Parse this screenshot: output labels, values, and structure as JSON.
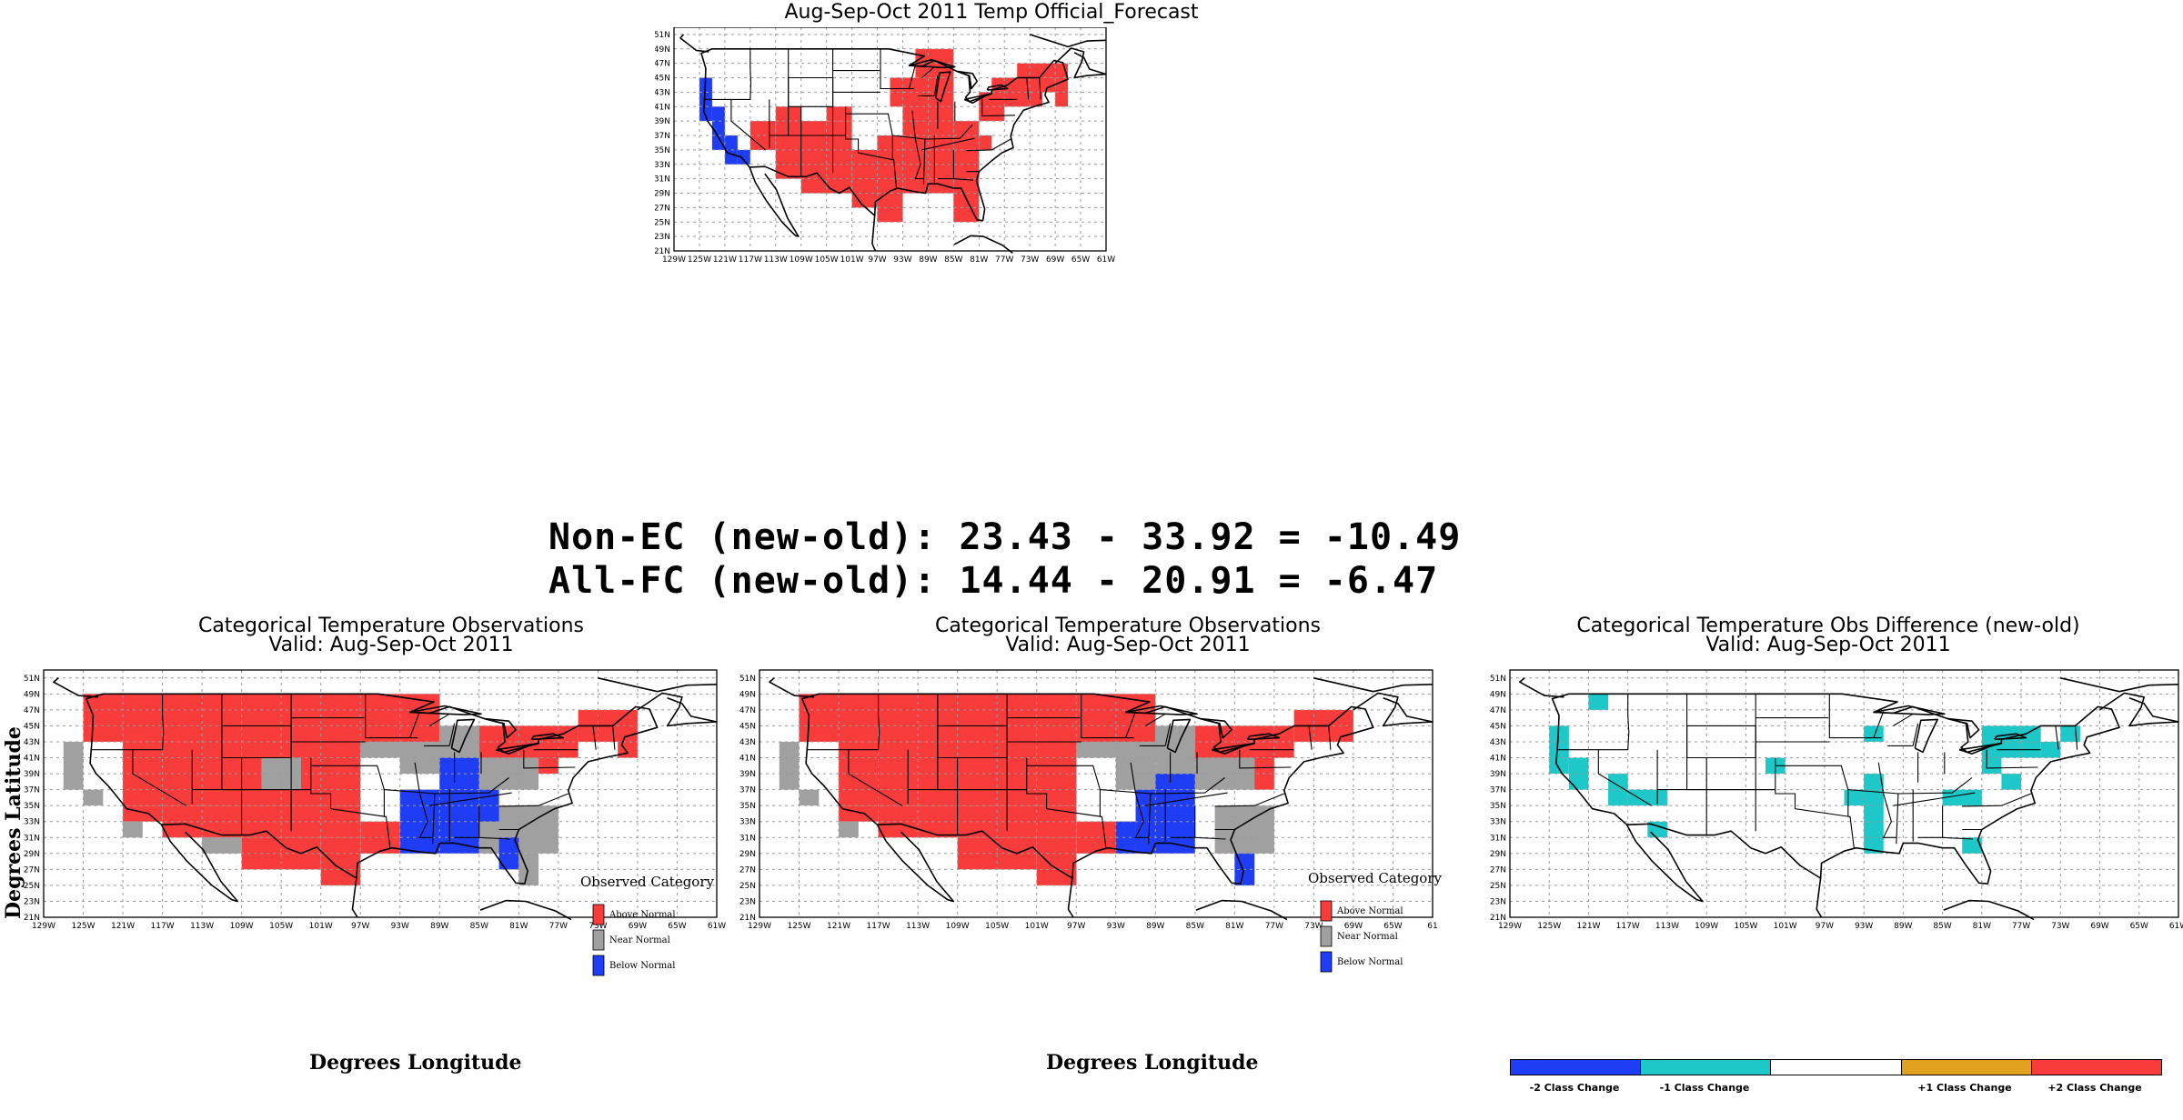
{
  "forecast_panel": {
    "title": "Aug-Sep-Oct 2011 Temp Official_Forecast"
  },
  "stats": {
    "non_ec": "Non-EC (new-old): 23.43 - 33.92 = -10.49",
    "all_fc": "All-FC (new-old): 14.44 - 20.91 = -6.47"
  },
  "obs_panel_left": {
    "title_line1": "Categorical Temperature Observations",
    "title_line2": "Valid: Aug-Sep-Oct 2011",
    "ylabel": "Degrees Latitude",
    "xlabel": "Degrees Longitude"
  },
  "obs_panel_mid": {
    "title_line1": "Categorical Temperature Observations",
    "title_line2": "Valid: Aug-Sep-Oct 2011",
    "xlabel": "Degrees Longitude"
  },
  "diff_panel": {
    "title_line1": "Categorical Temperature Obs Difference (new-old)",
    "title_line2": "Valid: Aug-Sep-Oct 2011"
  },
  "obs_legend": {
    "title": "Observed Category",
    "items": [
      {
        "label": "Above Normal",
        "color": "#f83c3c"
      },
      {
        "label": "Near Normal",
        "color": "#a0a0a0"
      },
      {
        "label": "Below Normal",
        "color": "#1f3df5"
      }
    ]
  },
  "diff_colorbar": {
    "segments": [
      "#1f3df5",
      "#1fc8c8",
      "#ffffff",
      "#e0a020",
      "#f83c3c"
    ],
    "labels": [
      "-2 Class Change",
      "-1 Class Change",
      "+1 Class Change",
      "+2 Class Change"
    ]
  },
  "lat_ticks": [
    "51N",
    "49N",
    "47N",
    "45N",
    "43N",
    "41N",
    "39N",
    "37N",
    "35N",
    "33N",
    "31N",
    "29N",
    "27N",
    "25N",
    "23N",
    "21N"
  ],
  "lon_ticks": [
    "129W",
    "125W",
    "121W",
    "117W",
    "113W",
    "109W",
    "105W",
    "101W",
    "97W",
    "93W",
    "89W",
    "85W",
    "81W",
    "77W",
    "73W",
    "69W",
    "65W",
    "61W"
  ],
  "lon_ticks_mid": [
    "129W",
    "125W",
    "121W",
    "117W",
    "113W",
    "109W",
    "105W",
    "101W",
    "97W",
    "93W",
    "89W",
    "85W",
    "81W",
    "77W",
    "73W",
    "69W",
    "65W",
    "61"
  ],
  "colors": {
    "above": "#f83c3c",
    "near": "#a0a0a0",
    "below": "#1f3df5",
    "minus1": "#1fc8c8"
  }
}
